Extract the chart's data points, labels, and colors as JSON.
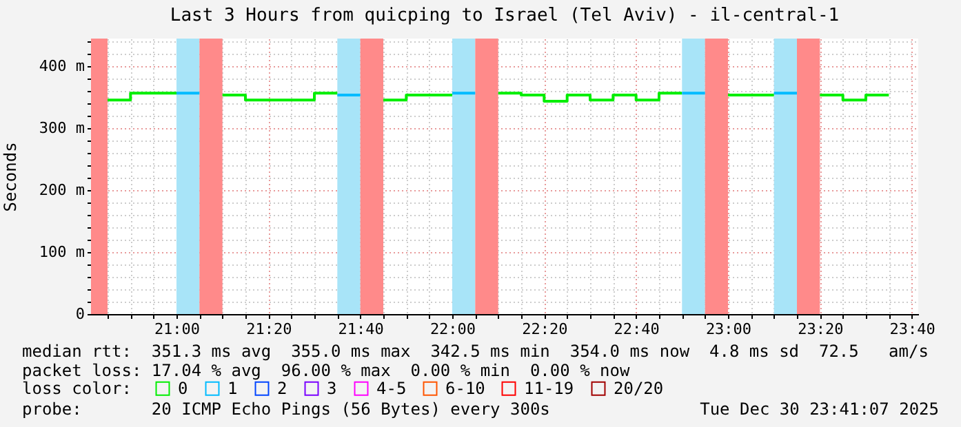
{
  "chart_data": {
    "type": "step",
    "title": "Last 3 Hours from quicping to Israel (Tel Aviv) - il-central-1",
    "ylabel": "Seconds",
    "legend_title": "loss color:",
    "legend": "bottom",
    "grid": true,
    "series": [
      {
        "name": "0",
        "color": "#00ee00",
        "x": [
          20.75,
          20.8333,
          20.9167,
          21.0,
          21.0833,
          21.1667,
          21.25,
          21.3333,
          21.4167,
          21.5,
          21.5833,
          21.6667,
          21.75,
          21.8333,
          21.9167,
          22.0,
          22.0833,
          22.1667,
          22.25,
          22.3333,
          22.4167,
          22.5,
          22.5833,
          22.6667,
          22.75,
          22.8333,
          22.9167,
          23.0,
          23.0833,
          23.1667,
          23.25,
          23.3333,
          23.4167,
          23.5,
          23.5833
        ],
        "values": [
          345,
          356,
          356,
          356,
          null,
          353,
          345,
          345,
          345,
          356,
          356,
          null,
          345,
          353,
          353,
          353,
          null,
          356,
          353,
          343,
          353,
          345,
          353,
          345,
          356,
          356,
          null,
          353,
          353,
          353,
          null,
          353,
          345,
          353,
          353
        ]
      },
      {
        "name": "1",
        "color": "#00bbff",
        "x": [
          21.0,
          21.0833,
          21.1667,
          21.5833,
          21.6667,
          21.75,
          22.0,
          22.0833,
          22.1667,
          22.8333,
          22.9167,
          23.0,
          23.1667,
          23.25
        ],
        "values": [
          356,
          356,
          null,
          353,
          353,
          null,
          356,
          356,
          null,
          356,
          356,
          null,
          356,
          356
        ]
      },
      {
        "name": "2",
        "color": "#0044ff"
      },
      {
        "name": "3",
        "color": "#7a00ff"
      },
      {
        "name": "4-5",
        "color": "#ff00ff"
      },
      {
        "name": "6-10",
        "color": "#ff5500"
      },
      {
        "name": "11-19",
        "color": "#ff0000"
      },
      {
        "name": "20/20",
        "color": "#a10000"
      }
    ],
    "bands": [
      {
        "axis": "x",
        "from": 20.69,
        "to": 20.75,
        "color": "#ff8a8a"
      },
      {
        "axis": "x",
        "from": 21.0,
        "to": 21.0833,
        "color": "#a8e4f8"
      },
      {
        "axis": "x",
        "from": 21.0833,
        "to": 21.1667,
        "color": "#ff8a8a"
      },
      {
        "axis": "x",
        "from": 21.5833,
        "to": 21.6667,
        "color": "#a8e4f8"
      },
      {
        "axis": "x",
        "from": 21.6667,
        "to": 21.75,
        "color": "#ff8a8a"
      },
      {
        "axis": "x",
        "from": 22.0,
        "to": 22.0833,
        "color": "#a8e4f8"
      },
      {
        "axis": "x",
        "from": 22.0833,
        "to": 22.1667,
        "color": "#ff8a8a"
      },
      {
        "axis": "x",
        "from": 22.8333,
        "to": 22.9167,
        "color": "#a8e4f8"
      },
      {
        "axis": "x",
        "from": 22.9167,
        "to": 23.0,
        "color": "#ff8a8a"
      },
      {
        "axis": "x",
        "from": 23.1667,
        "to": 23.25,
        "color": "#a8e4f8"
      },
      {
        "axis": "x",
        "from": 23.25,
        "to": 23.3333,
        "color": "#ff8a8a"
      }
    ],
    "xlim": [
      20.69,
      23.69
    ],
    "xticks": [
      {
        "value": 20.75,
        "label": null
      },
      {
        "value": 20.8333,
        "label": null
      },
      {
        "value": 20.9167,
        "label": null
      },
      {
        "value": 21,
        "label": "21:00"
      },
      {
        "value": 21.0833,
        "label": null
      },
      {
        "value": 21.1667,
        "label": null
      },
      {
        "value": 21.25,
        "label": null
      },
      {
        "value": 21.3333,
        "label": "21:20"
      },
      {
        "value": 21.4167,
        "label": null
      },
      {
        "value": 21.5,
        "label": null
      },
      {
        "value": 21.5833,
        "label": null
      },
      {
        "value": 21.6667,
        "label": "21:40"
      },
      {
        "value": 21.75,
        "label": null
      },
      {
        "value": 21.8333,
        "label": null
      },
      {
        "value": 21.9167,
        "label": null
      },
      {
        "value": 22,
        "label": "22:00"
      },
      {
        "value": 22.0833,
        "label": null
      },
      {
        "value": 22.1667,
        "label": null
      },
      {
        "value": 22.25,
        "label": null
      },
      {
        "value": 22.3333,
        "label": "22:20"
      },
      {
        "value": 22.4167,
        "label": null
      },
      {
        "value": 22.5,
        "label": null
      },
      {
        "value": 22.5833,
        "label": null
      },
      {
        "value": 22.6667,
        "label": "22:40"
      },
      {
        "value": 22.75,
        "label": null
      },
      {
        "value": 22.8333,
        "label": null
      },
      {
        "value": 22.9167,
        "label": null
      },
      {
        "value": 23,
        "label": "23:00"
      },
      {
        "value": 23.0833,
        "label": null
      },
      {
        "value": 23.1667,
        "label": null
      },
      {
        "value": 23.25,
        "label": null
      },
      {
        "value": 23.3333,
        "label": "23:20"
      },
      {
        "value": 23.4167,
        "label": null
      },
      {
        "value": 23.5,
        "label": null
      },
      {
        "value": 23.5833,
        "label": null
      },
      {
        "value": 23.6667,
        "label": "23:40"
      }
    ],
    "ylim": [
      0,
      444
    ],
    "yticks": [
      0,
      {
        "value": 20,
        "label": null
      },
      {
        "value": 40,
        "label": null
      },
      {
        "value": 60,
        "label": null
      },
      {
        "value": 80,
        "label": null
      },
      {
        "value": 100,
        "label": "100 m"
      },
      {
        "value": 120,
        "label": null
      },
      {
        "value": 140,
        "label": null
      },
      {
        "value": 160,
        "label": null
      },
      {
        "value": 180,
        "label": null
      },
      {
        "value": 200,
        "label": "200 m"
      },
      {
        "value": 220,
        "label": null
      },
      {
        "value": 240,
        "label": null
      },
      {
        "value": 260,
        "label": null
      },
      {
        "value": 280,
        "label": null
      },
      {
        "value": 300,
        "label": "300 m"
      },
      {
        "value": 320,
        "label": null
      },
      {
        "value": 340,
        "label": null
      },
      {
        "value": 360,
        "label": null
      },
      {
        "value": 380,
        "label": null
      },
      {
        "value": 400,
        "label": "400 m"
      },
      {
        "value": 420,
        "label": null
      },
      {
        "value": 440,
        "label": null
      }
    ],
    "annotations": [
      "median rtt:  351.3 ms avg  355.0 ms max  342.5 ms min  354.0 ms now  4.8 ms sd  72.5   am/s",
      "packet loss: 17.04 % avg  96.00 % max  0.00 % min  0.00 % now",
      "probe:       20 ICMP Echo Pings (56 Bytes) every 300s",
      "Tue Dec 30 23:41:07 2025"
    ]
  }
}
